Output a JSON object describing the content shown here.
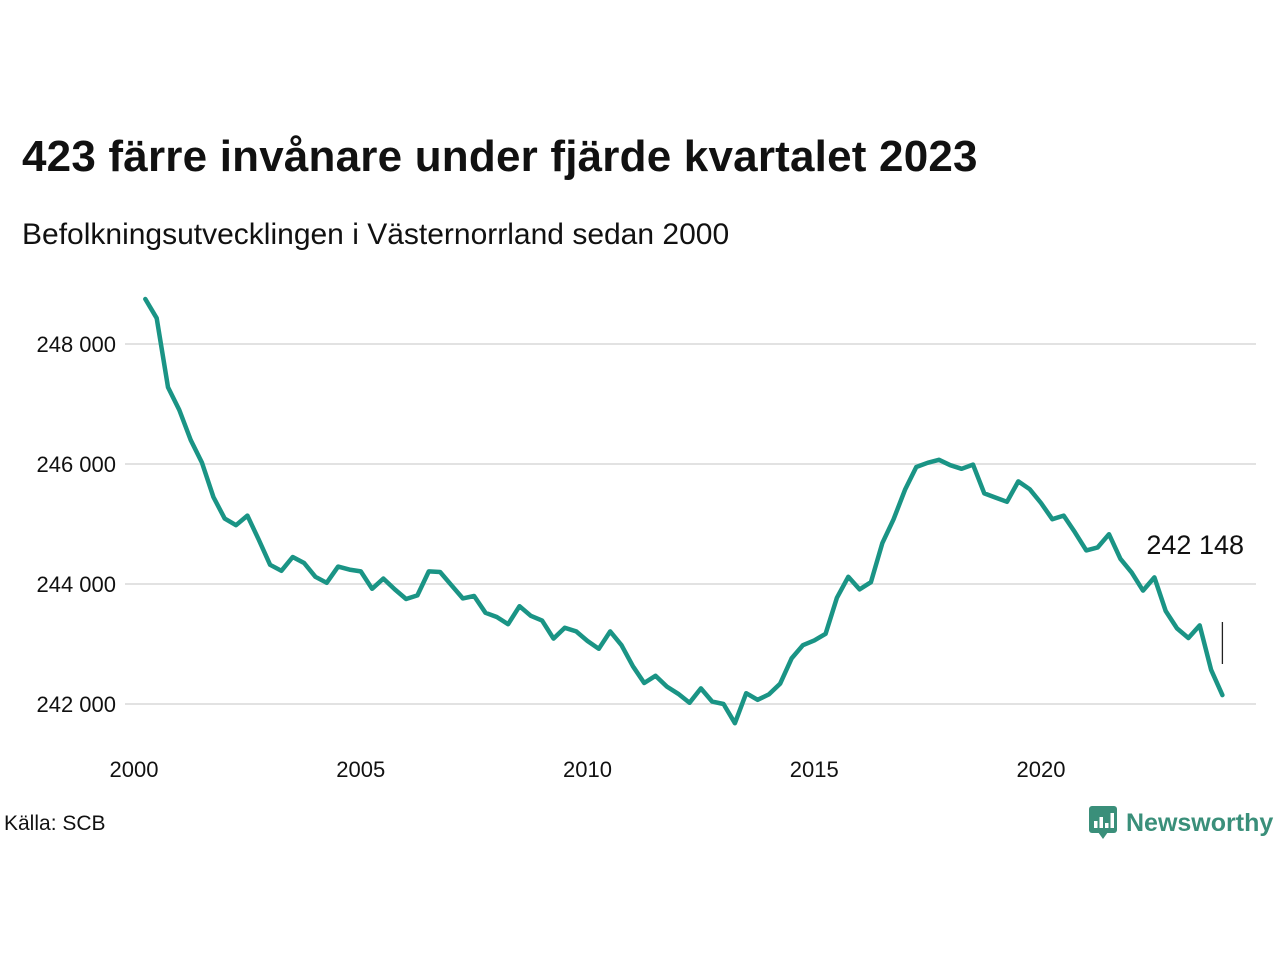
{
  "title": "423 färre invånare under fjärde kvartalet 2023",
  "subtitle": "Befolkningsutvecklingen i Västernorrland sedan 2000",
  "source": "Källa: SCB",
  "brand": "Newsworthy",
  "colors": {
    "line": "#1a9485",
    "grid": "#e2e2e2",
    "brand": "#3a8f7a"
  },
  "chart_data": {
    "type": "line",
    "title": "423 färre invånare under fjärde kvartalet 2023",
    "subtitle": "Befolkningsutvecklingen i Västernorrland sedan 2000",
    "xlabel": "",
    "ylabel": "",
    "xlim": [
      2000,
      2024
    ],
    "ylim": [
      241500,
      249000
    ],
    "y_ticks": [
      242000,
      244000,
      246000,
      248000
    ],
    "y_tick_labels": [
      "242 000",
      "244 000",
      "246 000",
      "248 000"
    ],
    "x_ticks": [
      2000,
      2005,
      2010,
      2015,
      2020
    ],
    "x_tick_labels": [
      "2000",
      "2005",
      "2010",
      "2015",
      "2020"
    ],
    "grid": true,
    "end_label": "242 148",
    "series": [
      {
        "x": [
          2000.25,
          2000.5,
          2000.75,
          2001.0,
          2001.25,
          2001.5,
          2001.75,
          2002.0,
          2002.25,
          2002.5,
          2002.75,
          2003.0,
          2003.25,
          2003.5,
          2003.75,
          2004.0,
          2004.25,
          2004.5,
          2004.75,
          2005.0,
          2005.25,
          2005.5,
          2005.75,
          2006.0,
          2006.25,
          2006.5,
          2006.75,
          2007.0,
          2007.25,
          2007.5,
          2007.75,
          2008.0,
          2008.25,
          2008.5,
          2008.75,
          2009.0,
          2009.25,
          2009.5,
          2009.75,
          2010.0,
          2010.25,
          2010.5,
          2010.75,
          2011.0,
          2011.25,
          2011.5,
          2011.75,
          2012.0,
          2012.25,
          2012.5,
          2012.75,
          2013.0,
          2013.25,
          2013.5,
          2013.75,
          2014.0,
          2014.25,
          2014.5,
          2014.75,
          2015.0,
          2015.25,
          2015.5,
          2015.75,
          2016.0,
          2016.25,
          2016.5,
          2016.75,
          2017.0,
          2017.25,
          2017.5,
          2017.75,
          2018.0,
          2018.25,
          2018.5,
          2018.75,
          2019.0,
          2019.25,
          2019.5,
          2019.75,
          2020.0,
          2020.25,
          2020.5,
          2020.75,
          2021.0,
          2021.25,
          2021.5,
          2021.75,
          2022.0,
          2022.25,
          2022.5,
          2022.75,
          2023.0,
          2023.25,
          2023.5,
          2023.75,
          2024.0
        ],
        "values": [
          248750,
          248430,
          247280,
          246900,
          246400,
          246020,
          245450,
          245090,
          244980,
          245140,
          244740,
          244320,
          244220,
          244450,
          244350,
          244120,
          244020,
          244290,
          244240,
          244210,
          243920,
          244090,
          243910,
          243750,
          243810,
          244210,
          244200,
          243980,
          243760,
          243800,
          243520,
          243450,
          243330,
          243630,
          243470,
          243390,
          243090,
          243270,
          243210,
          243050,
          242920,
          243210,
          242980,
          242630,
          242350,
          242470,
          242290,
          242170,
          242020,
          242260,
          242040,
          242000,
          241680,
          242180,
          242070,
          242160,
          242340,
          242760,
          242980,
          243060,
          243170,
          243770,
          244120,
          243910,
          244030,
          244680,
          245080,
          245570,
          245950,
          246020,
          246070,
          245980,
          245920,
          245990,
          245510,
          245440,
          245370,
          245710,
          245580,
          245350,
          245080,
          245140,
          244860,
          244560,
          244610,
          244830,
          244420,
          244190,
          243890,
          244110,
          243550,
          243260,
          243100,
          243310,
          242570,
          242148
        ]
      }
    ]
  }
}
